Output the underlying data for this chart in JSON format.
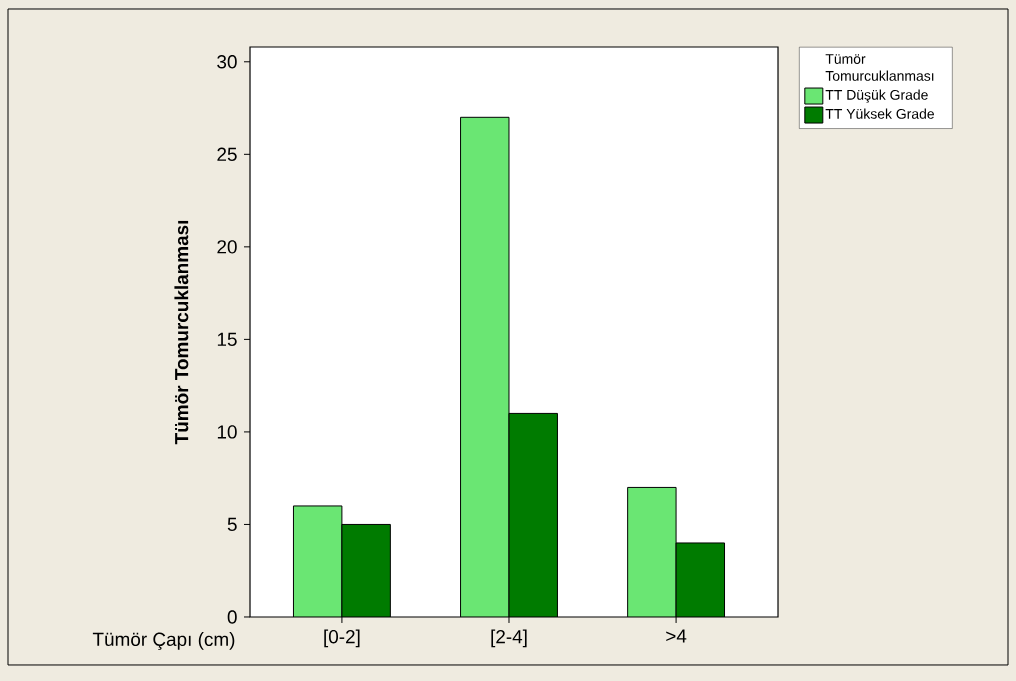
{
  "chart_data": {
    "type": "bar",
    "ylabel": "Tümör Tomurcuklanması",
    "xlabel": "Tümör Çapı (cm)",
    "legend_title": "Tümör Tomurcuklanması",
    "categories": [
      "[0-2]",
      "[2-4]",
      ">4"
    ],
    "series": [
      {
        "name": "TT Düşük Grade",
        "color": "#6ae673",
        "values": [
          6,
          27,
          7
        ]
      },
      {
        "name": "TT Yüksek Grade",
        "color": "#007b00",
        "values": [
          5,
          11,
          4
        ]
      }
    ],
    "ylim": [
      0,
      30.8
    ],
    "yticks": [
      0,
      5,
      10,
      15,
      20,
      25,
      30
    ],
    "legend": "top right"
  }
}
